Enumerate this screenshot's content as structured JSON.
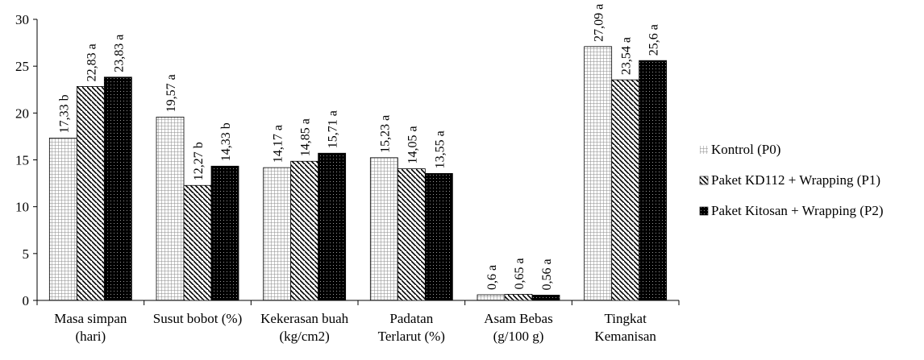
{
  "chart_data": {
    "type": "bar",
    "title": "",
    "xlabel": "",
    "ylabel": "",
    "ylim": [
      0,
      30
    ],
    "yticks": [
      0,
      5,
      10,
      15,
      20,
      25,
      30
    ],
    "grid": false,
    "legend_position": "right",
    "categories": [
      [
        "Masa simpan",
        "(hari)"
      ],
      [
        "Susut bobot (%)"
      ],
      [
        "Kekerasan buah",
        "(kg/cm2)"
      ],
      [
        "Padatan",
        "Terlarut  (%)"
      ],
      [
        "Asam Bebas",
        "(g/100 g)"
      ],
      [
        "Tingkat",
        "Kemanisan"
      ]
    ],
    "series": [
      {
        "name": "Kontrol (P0)",
        "pattern": "grid",
        "values": [
          17.33,
          19.57,
          14.17,
          15.23,
          0.6,
          27.09
        ],
        "labels": [
          "17,33 b",
          "19,57 a",
          "14,17 a",
          "15,23 a",
          "0,6 a",
          "27,09 a"
        ]
      },
      {
        "name": "Paket KD112 + Wrapping (P1)",
        "pattern": "diagonal",
        "values": [
          22.83,
          12.27,
          14.85,
          14.05,
          0.65,
          23.54
        ],
        "labels": [
          "22,83 a",
          "12,27 b",
          "14,85 a",
          "14,05 a",
          "0,65 a",
          "23,54 a"
        ]
      },
      {
        "name": "Paket Kitosan + Wrapping (P2)",
        "pattern": "dotted-black",
        "values": [
          23.83,
          14.33,
          15.71,
          13.55,
          0.56,
          25.6
        ],
        "labels": [
          "23,83 a",
          "14,33 b",
          "15,71 a",
          "13,55 a",
          "0,56 a",
          "25,6 a"
        ]
      }
    ]
  }
}
